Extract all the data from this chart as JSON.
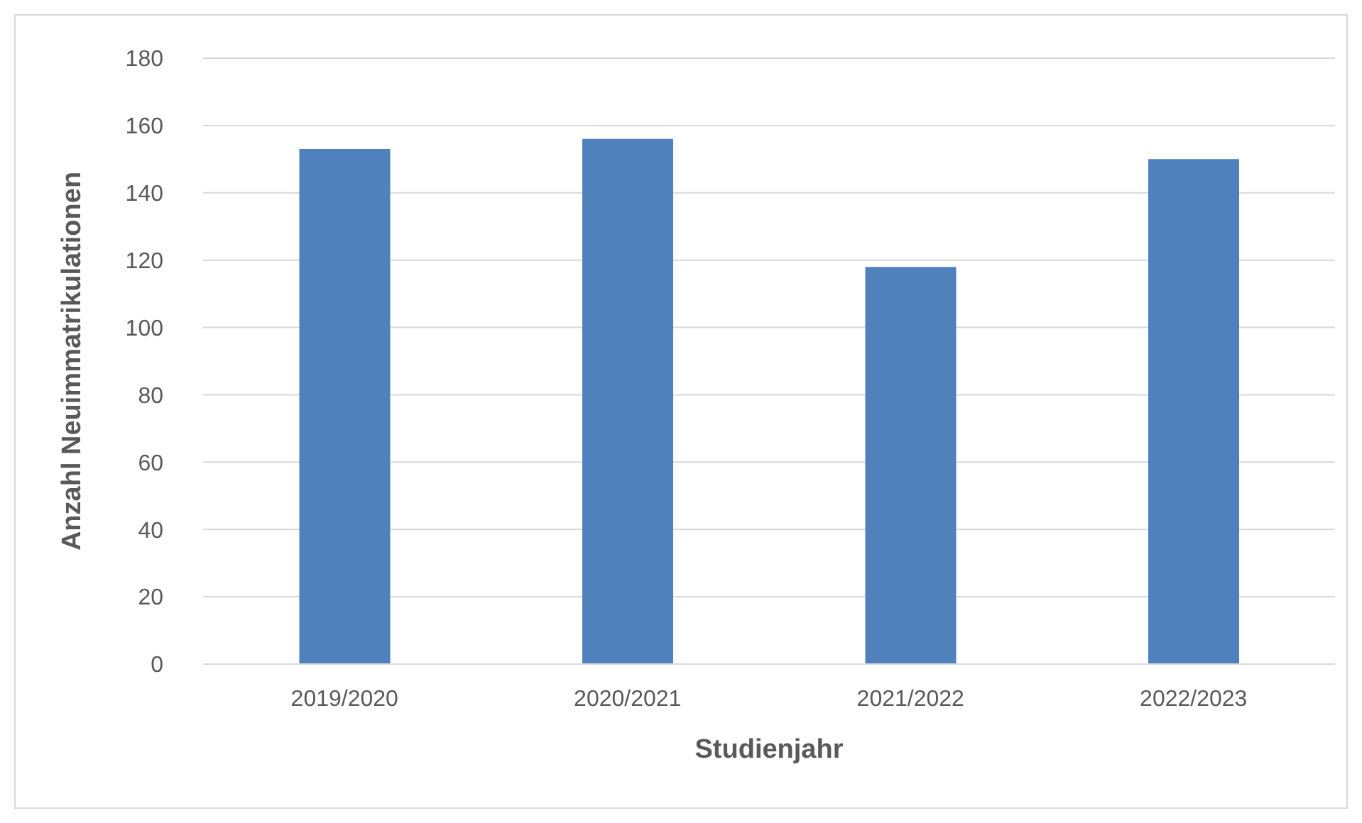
{
  "chart_data": {
    "type": "bar",
    "xlabel": "Studienjahr",
    "ylabel": "Anzahl Neuimmatrikulationen",
    "categories": [
      "2019/2020",
      "2020/2021",
      "2021/2022",
      "2022/2023"
    ],
    "values": [
      153,
      156,
      118,
      150
    ],
    "color": "#4f81bd",
    "ylim": [
      0,
      180
    ],
    "yticks": [
      0,
      20,
      40,
      60,
      80,
      100,
      120,
      140,
      160,
      180
    ],
    "grid": "y"
  }
}
